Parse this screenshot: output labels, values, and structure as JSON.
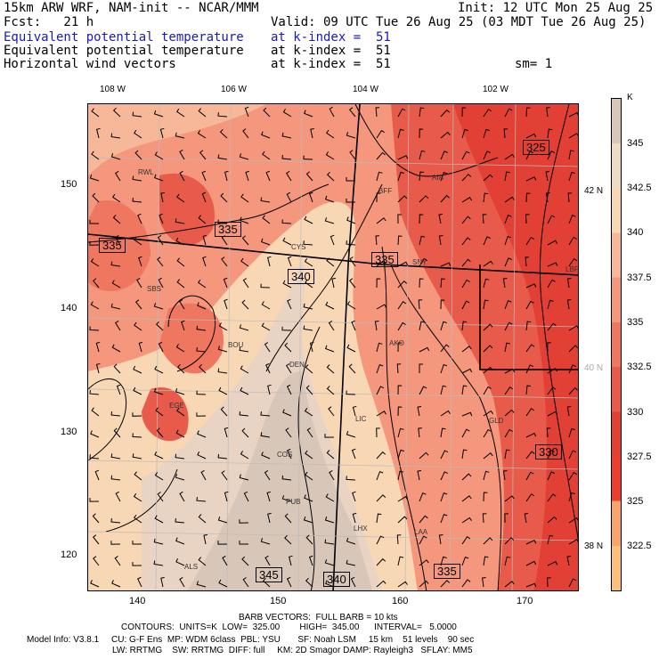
{
  "header": {
    "line1_left": "15km ARW WRF, NAM-init -- NCAR/MMM",
    "line1_right": "Init: 12 UTC Mon 25 Aug 25",
    "line2_left": "Fcst:   21 h",
    "line2_right": "Valid: 09 UTC Tue 26 Aug 25 (03 MDT Tue 26 Aug 25)",
    "field1_name": "Equivalent potential temperature",
    "field1_level": "at k-index =  51",
    "field2_name": "Equivalent potential temperature",
    "field2_level": "at k-index =  51",
    "field3_name": "Horizontal wind vectors",
    "field3_level": "at k-index =  51",
    "smooth": "sm= 1"
  },
  "top_axis": [
    "108 W",
    "106 W",
    "104 W",
    "102 W"
  ],
  "left_axis": [
    "150",
    "140",
    "130",
    "120"
  ],
  "bottom_axis": [
    "140",
    "150",
    "160",
    "170"
  ],
  "right_lat": [
    "42 N",
    "40 N",
    "38 N"
  ],
  "colorbar": {
    "unit": "K",
    "labels": [
      "345",
      "342.5",
      "340",
      "337.5",
      "335",
      "332.5",
      "330",
      "327.5",
      "325",
      "322.5"
    ],
    "colors": [
      "#d8c6b8",
      "#ecdcc6",
      "#f8d7b4",
      "#f6b898",
      "#f4977c",
      "#ef765f",
      "#e85a49",
      "#e34035",
      "#ef3c30",
      "#f8a46c",
      "#fcbf7c"
    ]
  },
  "contour_labels": [
    "335",
    "335",
    "340",
    "335",
    "325",
    "330",
    "345",
    "340",
    "335"
  ],
  "cities": [
    "RWL",
    "BFF",
    "AIA",
    "CYS",
    "SNY",
    "LBF",
    "SBS",
    "BOU",
    "DEN",
    "AKO",
    "LIC",
    "GLD",
    "EGE",
    "COS",
    "PUB",
    "LHX",
    "LAA",
    "ALS"
  ],
  "footer": {
    "barb": "BARB VECTORS:  FULL BARB = 10 kts",
    "contours": "CONTOURS:  UNITS=K  LOW=  325.00        HIGH=  345.00      INTERVAL=   5.0000",
    "model1": "Model Info: V3.8.1     CU: G-F Ens  MP: WDM 6class  PBL: YSU       SF: Noah LSM     15 km    51 levels    90 sec",
    "model2": "LW: RRTMG    SW: RRTMG  DIFF: full     KM: 2D Smagor DAMP: Rayleigh3   SFLAY: MM5"
  }
}
